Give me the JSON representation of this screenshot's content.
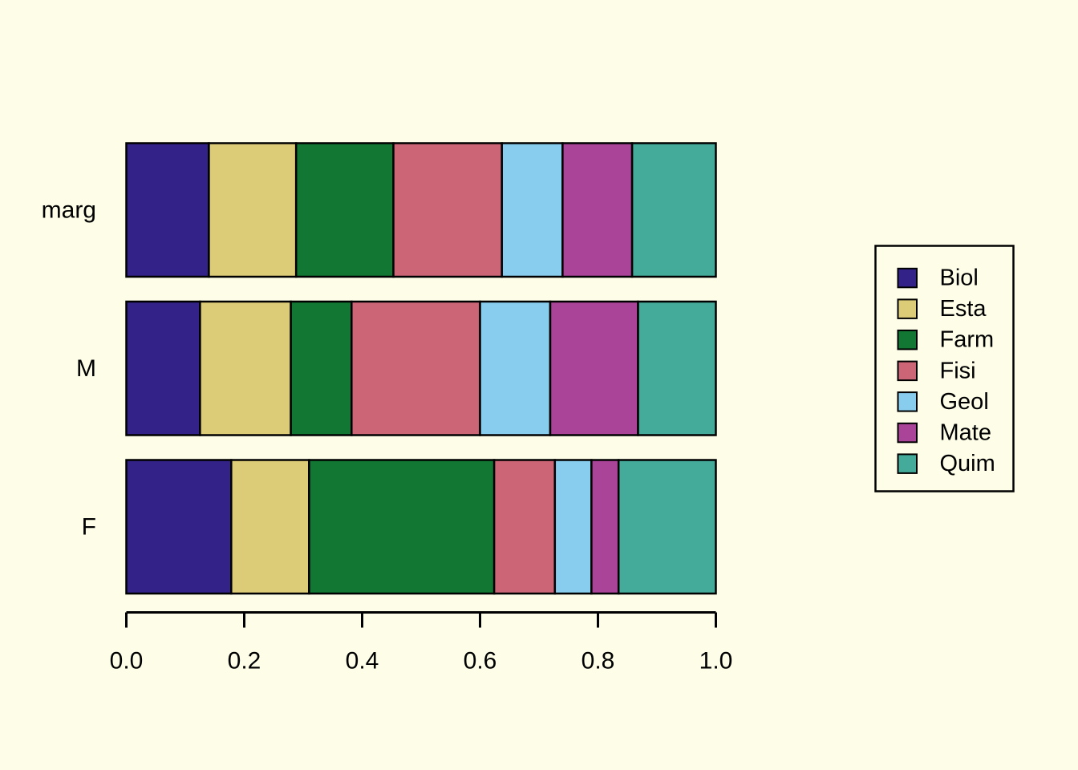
{
  "figure": {
    "background_color": "#FEFEE8",
    "foreground_color": "#000000"
  },
  "chart_data": {
    "type": "bar",
    "orientation": "horizontal",
    "stacked": true,
    "title": "",
    "xlabel": "",
    "ylabel": "",
    "grid": false,
    "rows": [
      "marg",
      "M",
      "F"
    ],
    "series": [
      {
        "name": "Biol",
        "color": "#332288",
        "values": [
          0.14,
          0.125,
          0.178
        ]
      },
      {
        "name": "Esta",
        "color": "#DDCC77",
        "values": [
          0.148,
          0.154,
          0.132
        ]
      },
      {
        "name": "Farm",
        "color": "#117733",
        "values": [
          0.165,
          0.103,
          0.314
        ]
      },
      {
        "name": "Fisi",
        "color": "#CC6677",
        "values": [
          0.184,
          0.218,
          0.103
        ]
      },
      {
        "name": "Geol",
        "color": "#88CCEE",
        "values": [
          0.103,
          0.119,
          0.062
        ]
      },
      {
        "name": "Mate",
        "color": "#AA4499",
        "values": [
          0.118,
          0.149,
          0.046
        ]
      },
      {
        "name": "Quim",
        "color": "#44AA99",
        "values": [
          0.142,
          0.132,
          0.165
        ]
      }
    ],
    "x_axis": {
      "range": [
        0.0,
        1.0
      ],
      "ticks": [
        0.0,
        0.2,
        0.4,
        0.6,
        0.8,
        1.0
      ],
      "tick_labels": [
        "0.0",
        "0.2",
        "0.4",
        "0.6",
        "0.8",
        "1.0"
      ]
    },
    "legend": {
      "position": "right",
      "entries": [
        "Biol",
        "Esta",
        "Farm",
        "Fisi",
        "Geol",
        "Mate",
        "Quim"
      ]
    },
    "bar_border_color": "#000000"
  }
}
